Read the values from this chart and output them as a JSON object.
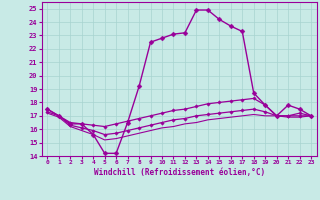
{
  "xlabel": "Windchill (Refroidissement éolien,°C)",
  "background_color": "#c8eae6",
  "grid_color": "#a8d4d0",
  "line_color": "#990099",
  "x_ticks": [
    0,
    1,
    2,
    3,
    4,
    5,
    6,
    7,
    8,
    9,
    10,
    11,
    12,
    13,
    14,
    15,
    16,
    17,
    18,
    19,
    20,
    21,
    22,
    23
  ],
  "ylim": [
    14,
    25.5
  ],
  "xlim": [
    -0.5,
    23.5
  ],
  "series": [
    {
      "x": [
        0,
        1,
        2,
        3,
        4,
        5,
        6,
        7,
        8,
        9,
        10,
        11,
        12,
        13,
        14,
        15,
        16,
        17,
        18,
        19,
        20,
        21,
        22,
        23
      ],
      "y": [
        17.5,
        17.0,
        16.4,
        16.4,
        15.6,
        14.2,
        14.2,
        16.5,
        19.2,
        22.5,
        22.8,
        23.1,
        23.2,
        24.9,
        24.9,
        24.2,
        23.7,
        23.3,
        18.7,
        17.8,
        17.0,
        17.8,
        17.5,
        17.0
      ],
      "marker": "D",
      "markersize": 2.5,
      "linewidth": 1.0
    },
    {
      "x": [
        0,
        1,
        2,
        3,
        4,
        5,
        6,
        7,
        8,
        9,
        10,
        11,
        12,
        13,
        14,
        15,
        16,
        17,
        18,
        19,
        20,
        21,
        22,
        23
      ],
      "y": [
        17.5,
        17.0,
        16.5,
        16.4,
        16.3,
        16.2,
        16.4,
        16.6,
        16.8,
        17.0,
        17.2,
        17.4,
        17.5,
        17.7,
        17.9,
        18.0,
        18.1,
        18.2,
        18.3,
        17.8,
        17.0,
        17.0,
        17.2,
        17.0
      ],
      "marker": "D",
      "markersize": 1.8,
      "linewidth": 0.9
    },
    {
      "x": [
        0,
        1,
        2,
        3,
        4,
        5,
        6,
        7,
        8,
        9,
        10,
        11,
        12,
        13,
        14,
        15,
        16,
        17,
        18,
        19,
        20,
        21,
        22,
        23
      ],
      "y": [
        17.3,
        17.0,
        16.3,
        16.1,
        15.9,
        15.6,
        15.7,
        15.9,
        16.1,
        16.3,
        16.5,
        16.7,
        16.8,
        17.0,
        17.1,
        17.2,
        17.3,
        17.4,
        17.5,
        17.3,
        17.0,
        17.0,
        17.0,
        17.0
      ],
      "marker": "D",
      "markersize": 1.8,
      "linewidth": 0.9
    },
    {
      "x": [
        0,
        1,
        2,
        3,
        4,
        5,
        6,
        7,
        8,
        9,
        10,
        11,
        12,
        13,
        14,
        15,
        16,
        17,
        18,
        19,
        20,
        21,
        22,
        23
      ],
      "y": [
        17.2,
        16.9,
        16.2,
        15.9,
        15.6,
        15.2,
        15.3,
        15.5,
        15.7,
        15.9,
        16.1,
        16.2,
        16.4,
        16.5,
        16.7,
        16.8,
        16.9,
        17.0,
        17.1,
        17.0,
        17.0,
        16.9,
        16.9,
        17.0
      ],
      "marker": null,
      "markersize": 0,
      "linewidth": 0.8
    }
  ],
  "yticks": [
    14,
    15,
    16,
    17,
    18,
    19,
    20,
    21,
    22,
    23,
    24,
    25
  ]
}
